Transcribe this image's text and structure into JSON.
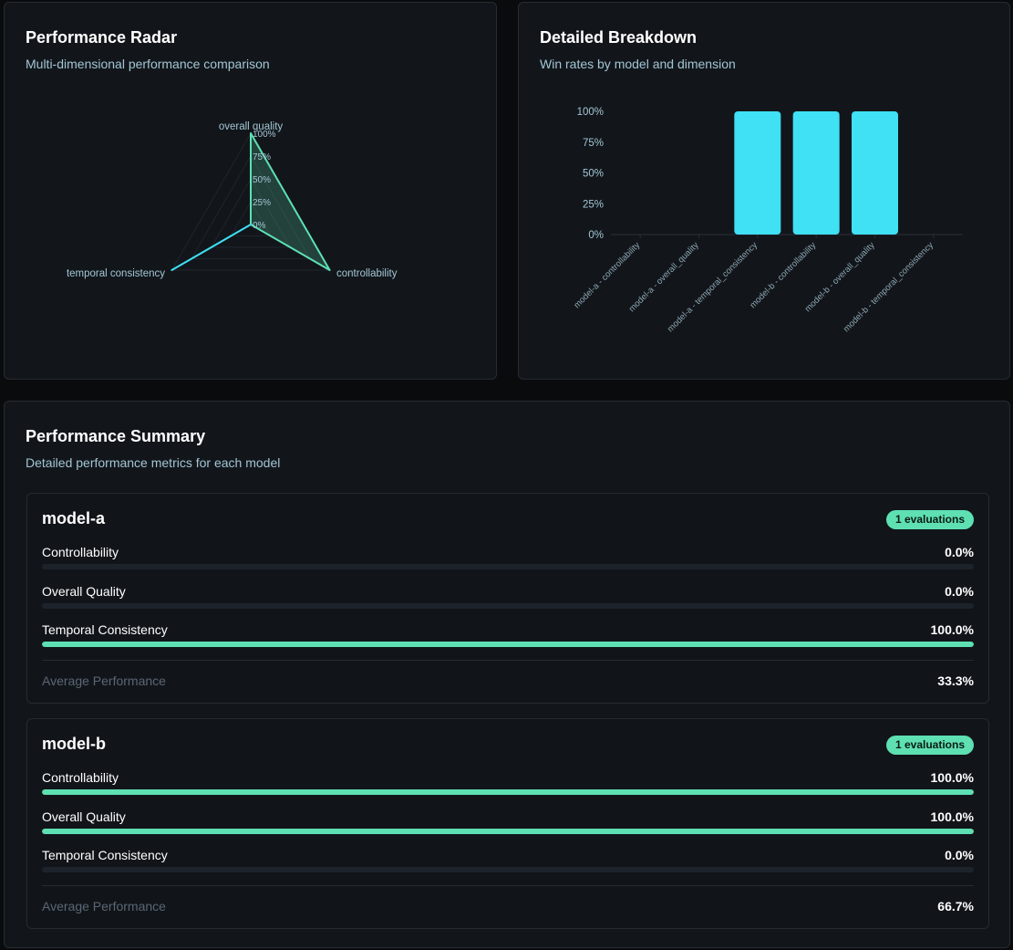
{
  "radar": {
    "title": "Performance Radar",
    "subtitle": "Multi-dimensional performance comparison"
  },
  "breakdown": {
    "title": "Detailed Breakdown",
    "subtitle": "Win rates by model and dimension"
  },
  "summary": {
    "title": "Performance Summary",
    "subtitle": "Detailed performance metrics for each model",
    "avg_label": "Average Performance",
    "models": [
      {
        "name": "model-a",
        "badge": "1 evaluations",
        "metrics": [
          {
            "label": "Controllability",
            "value": "0.0%",
            "pct": 0
          },
          {
            "label": "Overall Quality",
            "value": "0.0%",
            "pct": 0
          },
          {
            "label": "Temporal Consistency",
            "value": "100.0%",
            "pct": 100
          }
        ],
        "average": "33.3%"
      },
      {
        "name": "model-b",
        "badge": "1 evaluations",
        "metrics": [
          {
            "label": "Controllability",
            "value": "100.0%",
            "pct": 100
          },
          {
            "label": "Overall Quality",
            "value": "100.0%",
            "pct": 100
          },
          {
            "label": "Temporal Consistency",
            "value": "0.0%",
            "pct": 0
          }
        ],
        "average": "66.7%"
      }
    ]
  },
  "colors": {
    "accent_green": "#5ee0b3",
    "accent_cyan": "#40e0f5",
    "text_muted": "#a3c6d4"
  },
  "chart_data": [
    {
      "type": "radar",
      "axes": [
        "overall quality",
        "controllability",
        "temporal consistency"
      ],
      "ticks": [
        "0%",
        "25%",
        "50%",
        "75%",
        "100%"
      ],
      "series": [
        {
          "name": "model-b",
          "values": [
            100,
            100,
            0
          ],
          "color": "#5ee0b3"
        },
        {
          "name": "model-a",
          "values": [
            0,
            0,
            100
          ],
          "color": "#40e0f5"
        }
      ]
    },
    {
      "type": "bar",
      "categories": [
        "model-a - controllability",
        "model-a - overall_quality",
        "model-a - temporal_consistency",
        "model-b - controllability",
        "model-b - overall_quality",
        "model-b - temporal_consistency"
      ],
      "values": [
        0,
        0,
        100,
        100,
        100,
        0
      ],
      "yticks": [
        "0%",
        "25%",
        "50%",
        "75%",
        "100%"
      ],
      "ylim": [
        0,
        100
      ],
      "color": "#40e0f5"
    }
  ]
}
